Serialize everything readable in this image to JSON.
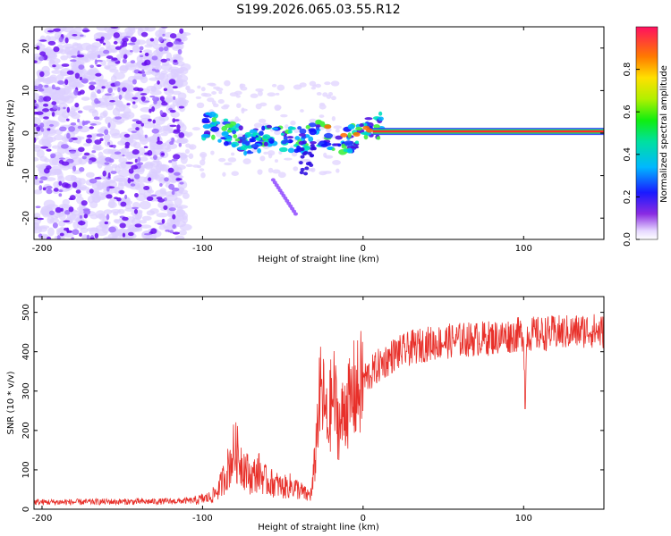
{
  "title": "S199.2026.065.03.55.R12",
  "colors": {
    "snr_line": "#e8302a",
    "ridge": "#ff2a2a",
    "speckle": "#7a18ff",
    "haze": "#d8c8ff"
  },
  "chart_data": [
    {
      "type": "heatmap",
      "title": "S199.2026.065.03.55.R12",
      "xlabel": "Height of straight line (km)",
      "ylabel": "Frequency (Hz)",
      "xlim": [
        -205,
        150
      ],
      "ylim": [
        -25,
        25
      ],
      "xticks": [
        -200,
        -100,
        0,
        100
      ],
      "yticks": [
        -20,
        -10,
        0,
        10,
        20
      ],
      "colorbar": {
        "label": "Normalized spectral amplitude",
        "range": [
          0.0,
          1.0
        ],
        "ticks": [
          "0.0",
          "0.2",
          "0.4",
          "0.6",
          "0.8"
        ],
        "tick_values": [
          0.0,
          0.2,
          0.4,
          0.6,
          0.8
        ]
      },
      "description_points": [
        {
          "x": -200,
          "noise_band": [
            -25,
            25
          ]
        },
        {
          "x": -100,
          "noise_band": [
            -3,
            3
          ]
        },
        {
          "x": 10,
          "ridge_freq": 0.5
        },
        {
          "x": 150,
          "ridge_freq": 0.3
        }
      ]
    },
    {
      "type": "line",
      "title": "",
      "xlabel": "Height of straight line (km)",
      "ylabel": "SNR (10 * v/v)",
      "xlim": [
        -205,
        150
      ],
      "ylim": [
        0,
        540
      ],
      "xticks": [
        -200,
        -100,
        0,
        100
      ],
      "yticks": [
        0,
        100,
        200,
        300,
        400,
        500
      ],
      "series": [
        {
          "name": "SNR",
          "x": [
            -205,
            -180,
            -160,
            -140,
            -120,
            -105,
            -95,
            -90,
            -85,
            -80,
            -75,
            -70,
            -65,
            -60,
            -55,
            -50,
            -45,
            -40,
            -35,
            -32,
            -30,
            -28,
            -26,
            -24,
            -22,
            -20,
            -18,
            -16,
            -14,
            -12,
            -10,
            -8,
            -6,
            -4,
            -2,
            0,
            5,
            10,
            15,
            20,
            25,
            30,
            40,
            50,
            60,
            70,
            80,
            90,
            100,
            101,
            102,
            110,
            120,
            130,
            140,
            150
          ],
          "y": [
            18,
            18,
            19,
            19,
            20,
            22,
            30,
            50,
            95,
            150,
            115,
            80,
            95,
            70,
            65,
            55,
            60,
            50,
            35,
            40,
            120,
            250,
            300,
            260,
            200,
            270,
            290,
            230,
            210,
            250,
            280,
            260,
            300,
            295,
            310,
            330,
            345,
            365,
            380,
            395,
            400,
            410,
            420,
            425,
            430,
            432,
            435,
            440,
            445,
            260,
            445,
            445,
            448,
            450,
            455,
            450
          ]
        }
      ]
    }
  ]
}
